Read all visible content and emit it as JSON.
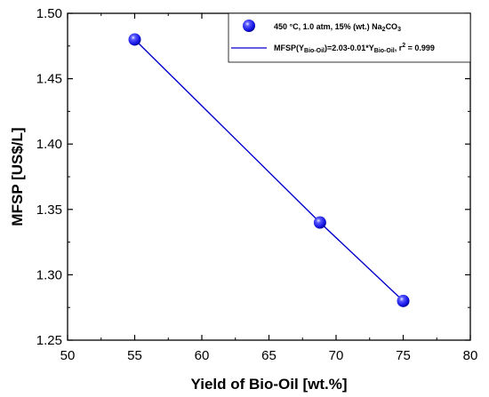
{
  "chart_data": {
    "type": "scatter",
    "xlabel": "Yield of Bio-Oil [wt.%]",
    "ylabel": "MFSP [US$/L]",
    "xlim": [
      50,
      80
    ],
    "ylim": [
      1.25,
      1.5
    ],
    "x_ticks": [
      "50",
      "55",
      "60",
      "65",
      "70",
      "75",
      "80"
    ],
    "y_ticks": [
      "1.25",
      "1.30",
      "1.35",
      "1.40",
      "1.45",
      "1.50"
    ],
    "grid": false,
    "legend_placement": "top-right",
    "series": [
      {
        "name": "450 °C, 1.0 atm, 15% (wt.) Na2CO3",
        "kind": "points",
        "color": "#1a1aff",
        "x": [
          55,
          68.8,
          75
        ],
        "y": [
          1.48,
          1.34,
          1.28
        ]
      },
      {
        "name": "MFSP(YBio-Oil)=2.03-0.01*YBio-Oil, r2 = 0.999",
        "kind": "fit-line",
        "color": "#0000cc",
        "x": [
          55,
          68.8,
          75
        ],
        "y": [
          1.48,
          1.34,
          1.28
        ]
      }
    ],
    "legend": {
      "entry1": {
        "a": "450 °C, 1.0 atm, 15% (wt.) Na",
        "sub": "2",
        "b": "CO",
        "sub2": "3"
      },
      "entry2": {
        "a": "MFSP(Y",
        "sub": "Bio-Oil",
        "b": ")=2.03-0.01*Y",
        "sub2": "Bio-Oil",
        "c": ", r",
        "sup": "2",
        "d": " = 0.999"
      }
    }
  }
}
